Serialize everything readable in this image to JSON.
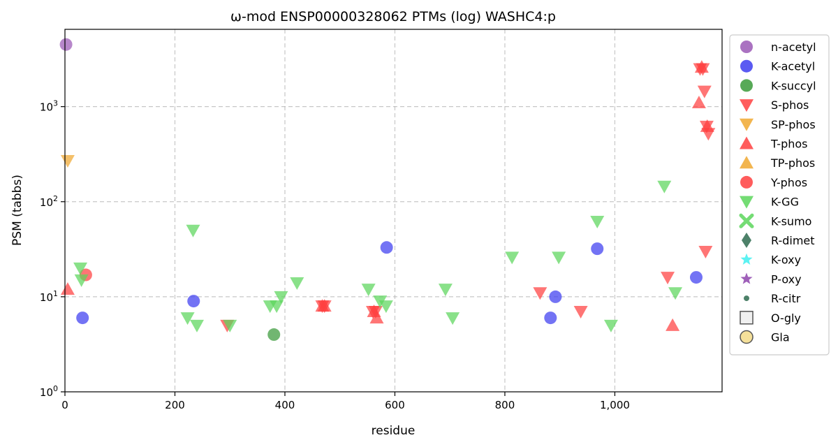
{
  "chart_data": {
    "type": "scatter",
    "title": "ω-mod ENSP00000328062 PTMs (log) WASHC4:p",
    "xlabel": "residue",
    "ylabel": "PSM (tabbs)",
    "xlim": [
      0,
      1195
    ],
    "ylim": [
      1,
      6500
    ],
    "yscale": "log",
    "grid": true,
    "legend_position": "right",
    "x_ticks": [
      {
        "value": 0,
        "label": "0"
      },
      {
        "value": 200,
        "label": "200"
      },
      {
        "value": 400,
        "label": "400"
      },
      {
        "value": 600,
        "label": "600"
      },
      {
        "value": 800,
        "label": "800"
      },
      {
        "value": 1000,
        "label": "1,000"
      }
    ],
    "y_ticks": [
      {
        "value": 1,
        "base": "10",
        "exp": "0"
      },
      {
        "value": 10,
        "base": "10",
        "exp": "1"
      },
      {
        "value": 100,
        "base": "10",
        "exp": "2"
      },
      {
        "value": 1000,
        "base": "10",
        "exp": "3"
      }
    ],
    "series": [
      {
        "name": "n-acetyl",
        "marker": "circle",
        "color": "#9b59b6",
        "points": [
          [
            2,
            4500
          ]
        ]
      },
      {
        "name": "K-acetyl",
        "marker": "circle",
        "color": "#3d3df0",
        "points": [
          [
            32,
            6
          ],
          [
            234,
            9
          ],
          [
            585,
            33
          ],
          [
            883,
            6
          ],
          [
            892,
            10
          ],
          [
            968,
            32
          ],
          [
            1148,
            16
          ]
        ]
      },
      {
        "name": "K-succyl",
        "marker": "circle",
        "color": "#3a9a3a",
        "points": [
          [
            380,
            4
          ]
        ]
      },
      {
        "name": "S-phos",
        "marker": "triangle-down",
        "color": "#ff4040",
        "points": [
          [
            295,
            5
          ],
          [
            468,
            8
          ],
          [
            472,
            8
          ],
          [
            560,
            7
          ],
          [
            565,
            7
          ],
          [
            864,
            11
          ],
          [
            938,
            7
          ],
          [
            1096,
            16
          ],
          [
            1155,
            2500
          ],
          [
            1160,
            2500
          ],
          [
            1163,
            1450
          ],
          [
            1167,
            620
          ],
          [
            1170,
            520
          ],
          [
            1165,
            30
          ]
        ]
      },
      {
        "name": "SP-phos",
        "marker": "triangle-down",
        "color": "#f0a830",
        "points": [
          [
            5,
            270
          ]
        ]
      },
      {
        "name": "T-phos",
        "marker": "triangle-up",
        "color": "#ff4040",
        "points": [
          [
            5,
            12
          ],
          [
            468,
            8
          ],
          [
            472,
            8
          ],
          [
            562,
            7
          ],
          [
            567,
            6
          ],
          [
            1105,
            5
          ],
          [
            1153,
            1100
          ],
          [
            1158,
            2600
          ],
          [
            1168,
            620
          ]
        ]
      },
      {
        "name": "TP-phos",
        "marker": "triangle-up",
        "color": "#f0a830",
        "points": []
      },
      {
        "name": "Y-phos",
        "marker": "circle",
        "color": "#ff4040",
        "points": [
          [
            38,
            17
          ]
        ]
      },
      {
        "name": "K-GG",
        "marker": "triangle-down",
        "color": "#5cd65c",
        "points": [
          [
            28,
            20
          ],
          [
            30,
            15
          ],
          [
            223,
            6
          ],
          [
            233,
            50
          ],
          [
            240,
            5
          ],
          [
            300,
            5
          ],
          [
            373,
            8
          ],
          [
            385,
            8
          ],
          [
            393,
            10
          ],
          [
            422,
            14
          ],
          [
            552,
            12
          ],
          [
            573,
            9
          ],
          [
            584,
            8
          ],
          [
            692,
            12
          ],
          [
            705,
            6
          ],
          [
            813,
            26
          ],
          [
            898,
            26
          ],
          [
            968,
            62
          ],
          [
            993,
            5
          ],
          [
            1090,
            145
          ],
          [
            1110,
            11
          ]
        ]
      },
      {
        "name": "K-sumo",
        "marker": "x",
        "color": "#5cd65c",
        "points": []
      },
      {
        "name": "R-dimet",
        "marker": "diamond",
        "color": "#2e6b4f",
        "points": []
      },
      {
        "name": "K-oxy",
        "marker": "star",
        "color": "#40f0f0",
        "points": []
      },
      {
        "name": "P-oxy",
        "marker": "star",
        "color": "#8e44ad",
        "points": []
      },
      {
        "name": "R-citr",
        "marker": "small-circle",
        "color": "#2e6b4f",
        "points": []
      },
      {
        "name": "O-gly",
        "marker": "square-open",
        "color": "#555555",
        "points": []
      },
      {
        "name": "Gla",
        "marker": "circle-open",
        "color": "#f5e09a",
        "points": []
      }
    ]
  }
}
